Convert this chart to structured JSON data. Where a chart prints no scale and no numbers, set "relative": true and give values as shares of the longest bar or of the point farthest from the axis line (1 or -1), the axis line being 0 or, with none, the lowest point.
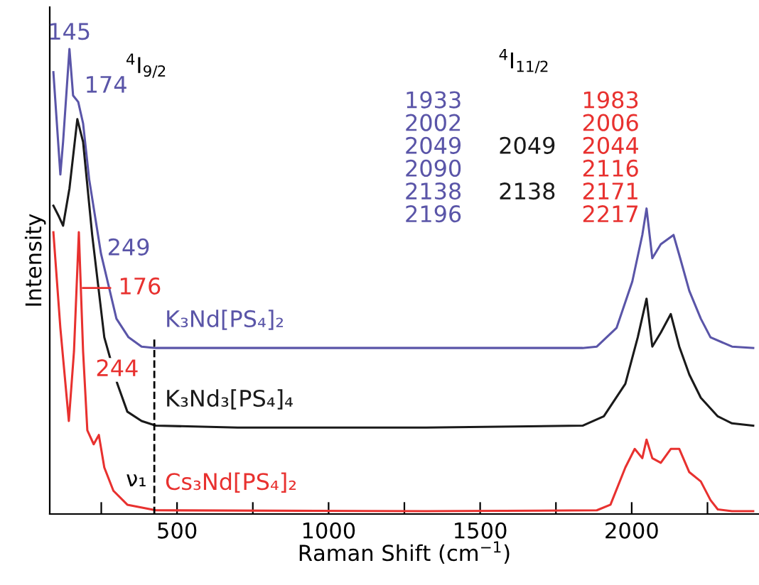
{
  "chart_data": {
    "type": "line",
    "relative": true,
    "xlabel": "Raman Shift (cm$^{−1}$)",
    "ylabel": "Intensity",
    "xlim": [
      80,
      2420
    ],
    "xticks": [
      {
        "value": 250,
        "label": null
      },
      500,
      {
        "value": 750,
        "label": null
      },
      1000,
      {
        "value": 1250,
        "label": null
      },
      1500,
      {
        "value": 1750,
        "label": null
      },
      2000,
      {
        "value": 2250,
        "label": null
      }
    ],
    "tick_labels": "x",
    "grid": false,
    "legend": false,
    "marker": "none",
    "line_style": "solid",
    "series": [
      {
        "name": "K₃Nd[PS₄]₂",
        "color": "#5a55a8",
        "x": [
          92,
          115,
          124,
          145,
          157,
          174,
          190,
          210,
          249,
          300,
          340,
          383,
          430,
          700,
          1322,
          1838,
          1885,
          1950,
          2002,
          2035,
          2049,
          2068,
          2096,
          2138,
          2160,
          2190,
          2228,
          2260,
          2331,
          2401
        ],
        "values": [
          0.95,
          0.73,
          0.8,
          1.0,
          0.9,
          0.886,
          0.84,
          0.72,
          0.56,
          0.42,
          0.38,
          0.36,
          0.357,
          0.357,
          0.357,
          0.357,
          0.36,
          0.4,
          0.5,
          0.6,
          0.657,
          0.55,
          0.58,
          0.6,
          0.55,
          0.48,
          0.42,
          0.38,
          0.36,
          0.357
        ]
      },
      {
        "name": "K₃Nd₃[PS₄]₄",
        "color": "#1a1a1a",
        "x": [
          92,
          110,
          124,
          145,
          171,
          190,
          220,
          260,
          303,
          336,
          383,
          430,
          700,
          1322,
          1838,
          1908,
          1979,
          2020,
          2049,
          2068,
          2096,
          2129,
          2157,
          2190,
          2228,
          2284,
          2331,
          2401
        ],
        "values": [
          0.663,
          0.64,
          0.62,
          0.7,
          0.849,
          0.8,
          0.6,
          0.38,
          0.28,
          0.22,
          0.2,
          0.19,
          0.186,
          0.186,
          0.19,
          0.21,
          0.28,
          0.38,
          0.463,
          0.36,
          0.39,
          0.43,
          0.36,
          0.3,
          0.25,
          0.21,
          0.195,
          0.19
        ]
      },
      {
        "name": "Cs₃Nd[PS₄]₂",
        "color": "#e8312f",
        "x": [
          92,
          115,
          143,
          160,
          176,
          190,
          204,
          225,
          242,
          260,
          290,
          336,
          430,
          1322,
          1885,
          1930,
          1979,
          2010,
          2035,
          2049,
          2068,
          2096,
          2129,
          2157,
          2190,
          2228,
          2260,
          2284,
          2331,
          2401
        ],
        "values": [
          0.606,
          0.4,
          0.2,
          0.35,
          0.606,
          0.35,
          0.18,
          0.15,
          0.17,
          0.1,
          0.05,
          0.02,
          0.008,
          0.006,
          0.008,
          0.02,
          0.1,
          0.14,
          0.12,
          0.16,
          0.12,
          0.11,
          0.14,
          0.14,
          0.09,
          0.07,
          0.03,
          0.01,
          0.006,
          0.006
        ]
      }
    ],
    "ref_lines": [
      {
        "axis": "x",
        "value": 425,
        "label": "ν₁",
        "line_style": "dashed",
        "color": "#000000"
      }
    ],
    "annotations": [
      "$^{4}$I$_{9/2}$",
      "$^{4}$I$_{11/2}$",
      "1933\n2002\n2049\n2090\n2138\n2196",
      "\n\n2049\n\n2138\n",
      "1983\n2006\n2044\n2116\n2171\n2217",
      {
        "text": "145",
        "x": 145,
        "y": 1.0
      },
      {
        "text": "174",
        "x": 174,
        "y": 0.886
      },
      {
        "text": "249",
        "x": 249,
        "y": 0.56
      },
      {
        "text": "176",
        "x": 176,
        "y": 0.606
      },
      {
        "text": "244",
        "x": 244,
        "y": 0.17
      }
    ]
  }
}
